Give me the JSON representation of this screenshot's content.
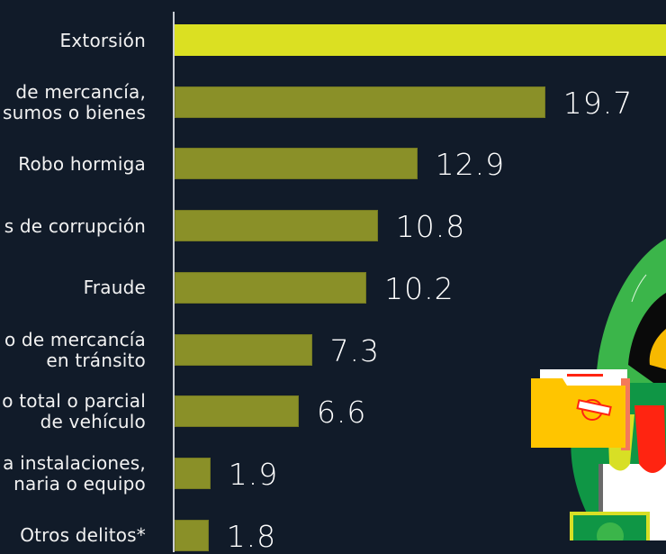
{
  "chart_data": {
    "type": "bar",
    "orientation": "horizontal",
    "title": "",
    "xlabel": "",
    "ylabel": "",
    "categories": [
      "Extorsión",
      "Robo de mercancía, insumos o bienes",
      "Robo hormiga",
      "Actos de corrupción",
      "Fraude",
      "Robo de mercancía en tránsito",
      "Robo total o parcial de vehículo",
      "Daño a instalaciones, maquinaria o equipo",
      "Otros delitos*"
    ],
    "visible_labels": [
      [
        "Extorsión"
      ],
      [
        "de mercancía,",
        "sumos o bienes"
      ],
      [
        "Robo hormiga"
      ],
      [
        "s de corrupción"
      ],
      [
        "Fraude"
      ],
      [
        "o de mercancía",
        "en tránsito"
      ],
      [
        "o total o parcial",
        "de vehículo"
      ],
      [
        "a instalaciones,",
        "naria o equipo"
      ],
      [
        "Otros delitos*"
      ]
    ],
    "values": [
      null,
      19.7,
      12.9,
      10.8,
      10.2,
      7.3,
      6.6,
      1.9,
      1.8
    ],
    "value_labels": [
      "",
      "19.7",
      "12.9",
      "10.8",
      "10.2",
      "7.3",
      "6.6",
      "1.9",
      "1.8"
    ],
    "highlight_index": 0,
    "notes": "Extorsión bar extends beyond the visible crop; its value label is not visible (>26).",
    "colors": {
      "highlight": "#dbe022",
      "bar": "#8a9028",
      "background": "#111b29",
      "text": "#ffffff"
    },
    "grid": false,
    "legend": null
  },
  "illustration": {
    "description": "hooded-thief-with-folder-and-money"
  }
}
